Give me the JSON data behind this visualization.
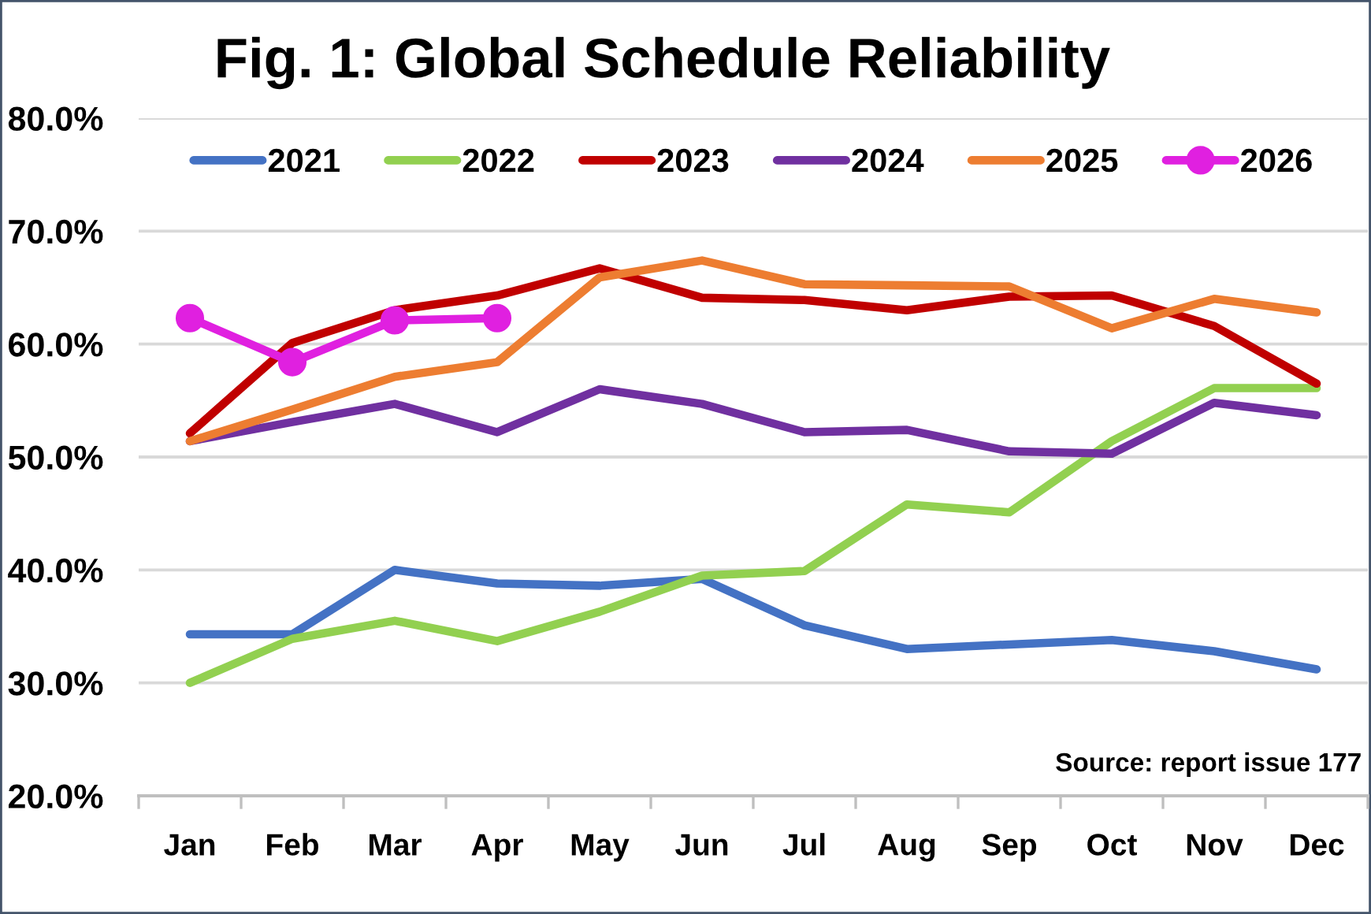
{
  "chart_data": {
    "type": "line",
    "title": "Fig. 1: Global Schedule Reliability",
    "categories": [
      "Jan",
      "Feb",
      "Mar",
      "Apr",
      "May",
      "Jun",
      "Jul",
      "Aug",
      "Sep",
      "Oct",
      "Nov",
      "Dec"
    ],
    "series": [
      {
        "name": "2021",
        "color": "#4472c4",
        "values": [
          34.3,
          34.3,
          40.0,
          38.8,
          38.6,
          39.2,
          35.1,
          33.0,
          33.4,
          33.8,
          32.8,
          31.2
        ]
      },
      {
        "name": "2022",
        "color": "#92d050",
        "values": [
          30.0,
          33.9,
          35.5,
          33.7,
          36.3,
          39.5,
          39.9,
          45.8,
          45.1,
          51.4,
          56.1,
          56.1
        ]
      },
      {
        "name": "2023",
        "color": "#c00000",
        "values": [
          52.1,
          60.1,
          63.0,
          64.3,
          66.7,
          64.1,
          63.9,
          63.0,
          64.2,
          64.3,
          61.6,
          56.5
        ]
      },
      {
        "name": "2024",
        "color": "#7030a0",
        "values": [
          51.4,
          53.1,
          54.7,
          52.2,
          56.0,
          54.7,
          52.2,
          52.4,
          50.5,
          50.3,
          54.8,
          53.7
        ]
      },
      {
        "name": "2025",
        "color": "#ed7d31",
        "values": [
          51.4,
          54.2,
          57.1,
          58.4,
          65.9,
          67.4,
          65.3,
          65.2,
          65.1,
          61.4,
          64.0,
          62.8
        ]
      },
      {
        "name": "2026",
        "color": "#e020e0",
        "marker": "circle",
        "values": [
          62.3,
          58.4,
          62.1,
          62.3,
          null,
          null,
          null,
          null,
          null,
          null,
          null,
          null
        ]
      }
    ],
    "ylim": [
      20,
      80
    ],
    "yticks": [
      {
        "value": 20,
        "label": "20.0%"
      },
      {
        "value": 30,
        "label": "30.0%"
      },
      {
        "value": 40,
        "label": "40.0%"
      },
      {
        "value": 50,
        "label": "50.0%"
      },
      {
        "value": 60,
        "label": "60.0%"
      },
      {
        "value": 70,
        "label": "70.0%"
      },
      {
        "value": 80,
        "label": "80.0%"
      }
    ],
    "grid": "y",
    "legend": "top",
    "line_style": "solid",
    "annotations": [
      "Source: report issue 177"
    ]
  }
}
